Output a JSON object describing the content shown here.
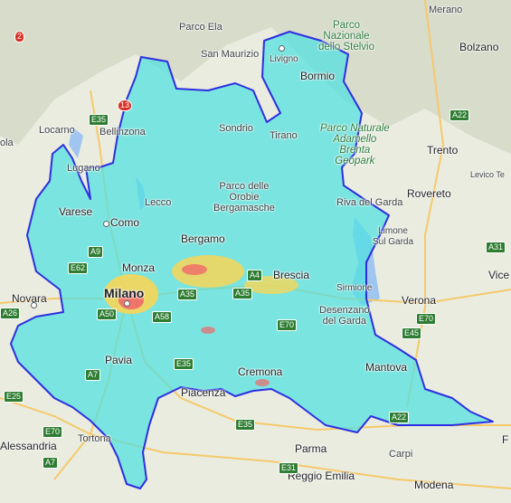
{
  "map": {
    "region_fill": "#4fe0e0",
    "region_border": "#2e2ee0",
    "place_labels": [
      {
        "id": "merano",
        "text": "Merano"
      },
      {
        "id": "bolzano",
        "text": "Bolzano"
      },
      {
        "id": "parco-ela",
        "text": "Parco Ela"
      },
      {
        "id": "stelvio",
        "text": "Parco\nNazionale\ndello Stelvio"
      },
      {
        "id": "san-maurizio",
        "text": "San Maurizio"
      },
      {
        "id": "livigno",
        "text": "Livigno"
      },
      {
        "id": "bormio",
        "text": "Bormio"
      },
      {
        "id": "locarno",
        "text": "Locarno"
      },
      {
        "id": "bellinzona",
        "text": "Bellinzona"
      },
      {
        "id": "sondrio",
        "text": "Sondrio"
      },
      {
        "id": "tirano",
        "text": "Tirano"
      },
      {
        "id": "adamello",
        "text": "Parco Naturale\nAdamello\nBrenta\nGeopark"
      },
      {
        "id": "trento",
        "text": "Trento"
      },
      {
        "id": "levico",
        "text": "Levico Te"
      },
      {
        "id": "lugano",
        "text": "Lugano"
      },
      {
        "id": "orobie",
        "text": "Parco delle\nOrobie\nBergamasche"
      },
      {
        "id": "rovereto",
        "text": "Rovereto"
      },
      {
        "id": "riva",
        "text": "Riva del Garda"
      },
      {
        "id": "varese",
        "text": "Varese"
      },
      {
        "id": "lecco",
        "text": "Lecco"
      },
      {
        "id": "como",
        "text": "Como"
      },
      {
        "id": "bergamo",
        "text": "Bergamo"
      },
      {
        "id": "limone",
        "text": "Limone\nSul Garda"
      },
      {
        "id": "monza",
        "text": "Monza"
      },
      {
        "id": "brescia",
        "text": "Brescia"
      },
      {
        "id": "vicenza",
        "text": "Vice"
      },
      {
        "id": "novara",
        "text": "Novara"
      },
      {
        "id": "milano",
        "text": "Milano"
      },
      {
        "id": "sirmione",
        "text": "Sirmione"
      },
      {
        "id": "verona",
        "text": "Verona"
      },
      {
        "id": "desenzano",
        "text": "Desenzano\ndel Garda"
      },
      {
        "id": "pavia",
        "text": "Pavia"
      },
      {
        "id": "mantova",
        "text": "Mantova"
      },
      {
        "id": "cremona",
        "text": "Cremona"
      },
      {
        "id": "piacenza",
        "text": "Piacenza"
      },
      {
        "id": "alessandria",
        "text": "Alessandria"
      },
      {
        "id": "tortona",
        "text": "Tortona"
      },
      {
        "id": "parma",
        "text": "Parma"
      },
      {
        "id": "carpi",
        "text": "Carpi"
      },
      {
        "id": "reggio",
        "text": "Reggio Emilia"
      },
      {
        "id": "modena",
        "text": "Modena"
      },
      {
        "id": "ola",
        "text": "ola"
      },
      {
        "id": "f-edge",
        "text": "F"
      }
    ],
    "road_shields": [
      {
        "id": "s2",
        "text": "2"
      },
      {
        "id": "s13",
        "text": "13"
      },
      {
        "id": "e35a",
        "text": "E35"
      },
      {
        "id": "a22a",
        "text": "A22"
      },
      {
        "id": "a31",
        "text": "A31"
      },
      {
        "id": "a9",
        "text": "A9"
      },
      {
        "id": "e62",
        "text": "E62"
      },
      {
        "id": "a4",
        "text": "A4"
      },
      {
        "id": "a35a",
        "text": "A35"
      },
      {
        "id": "a35b",
        "text": "A35"
      },
      {
        "id": "a26",
        "text": "A26"
      },
      {
        "id": "a50",
        "text": "A50"
      },
      {
        "id": "a58",
        "text": "A58"
      },
      {
        "id": "e70a",
        "text": "E70"
      },
      {
        "id": "e70b",
        "text": "E70"
      },
      {
        "id": "e45",
        "text": "E45"
      },
      {
        "id": "e35b",
        "text": "E35"
      },
      {
        "id": "a7a",
        "text": "A7"
      },
      {
        "id": "e25",
        "text": "E25"
      },
      {
        "id": "e70c",
        "text": "E70"
      },
      {
        "id": "e35c",
        "text": "E35"
      },
      {
        "id": "a22b",
        "text": "A22"
      },
      {
        "id": "a7b",
        "text": "A7"
      },
      {
        "id": "e31",
        "text": "E31"
      }
    ]
  }
}
